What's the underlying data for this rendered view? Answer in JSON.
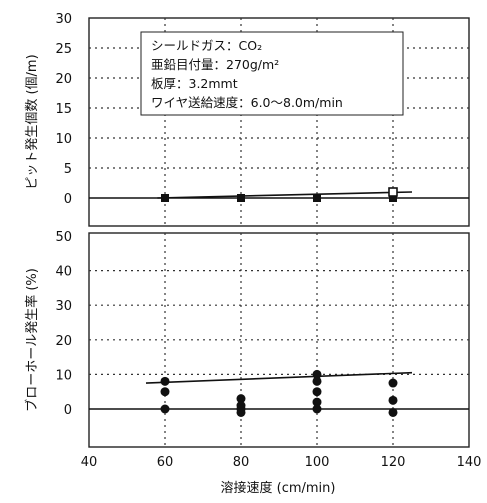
{
  "chart_data": [
    {
      "type": "scatter",
      "panel": "top",
      "ylabel": "ピット発生個数 (個/m)",
      "ylim": [
        0,
        30
      ],
      "yticks": [
        "0",
        "5",
        "10",
        "15",
        "20",
        "25",
        "30"
      ],
      "xlim": [
        40,
        140
      ],
      "grid": true,
      "annotation": [
        "シールドガス：CO₂",
        "亜鉛目付量：270g/m²",
        "板厚：3.2mmt",
        "ワイヤ送給速度：6.0〜8.0m/min"
      ],
      "series": [
        {
          "marker": "filled-square",
          "x": [
            60,
            80,
            100,
            120
          ],
          "y": [
            0,
            0,
            0,
            0
          ]
        },
        {
          "marker": "open-square",
          "x": [
            120
          ],
          "y": [
            1
          ]
        }
      ],
      "trend": {
        "x": [
          58,
          125
        ],
        "y": [
          0,
          1
        ]
      }
    },
    {
      "type": "scatter",
      "panel": "bottom",
      "ylabel": "ブローホール発生率 (%)",
      "xlabel": "溶接速度 (cm/min)",
      "ylim": [
        0,
        50
      ],
      "yticks": [
        "0",
        "10",
        "20",
        "30",
        "40",
        "50"
      ],
      "xlim": [
        40,
        140
      ],
      "xticks": [
        "40",
        "60",
        "80",
        "100",
        "120",
        "140"
      ],
      "grid": true,
      "series": [
        {
          "marker": "filled-circle",
          "x": [
            60,
            60,
            60,
            80,
            80,
            80,
            80,
            100,
            100,
            100,
            100,
            100,
            120,
            120,
            120
          ],
          "y": [
            8,
            5,
            0,
            3,
            1,
            0,
            -1,
            10,
            8,
            5,
            2,
            0,
            7.5,
            2.5,
            -1
          ]
        }
      ],
      "trend": {
        "x": [
          55,
          125
        ],
        "y": [
          7.5,
          10.5
        ]
      }
    }
  ]
}
